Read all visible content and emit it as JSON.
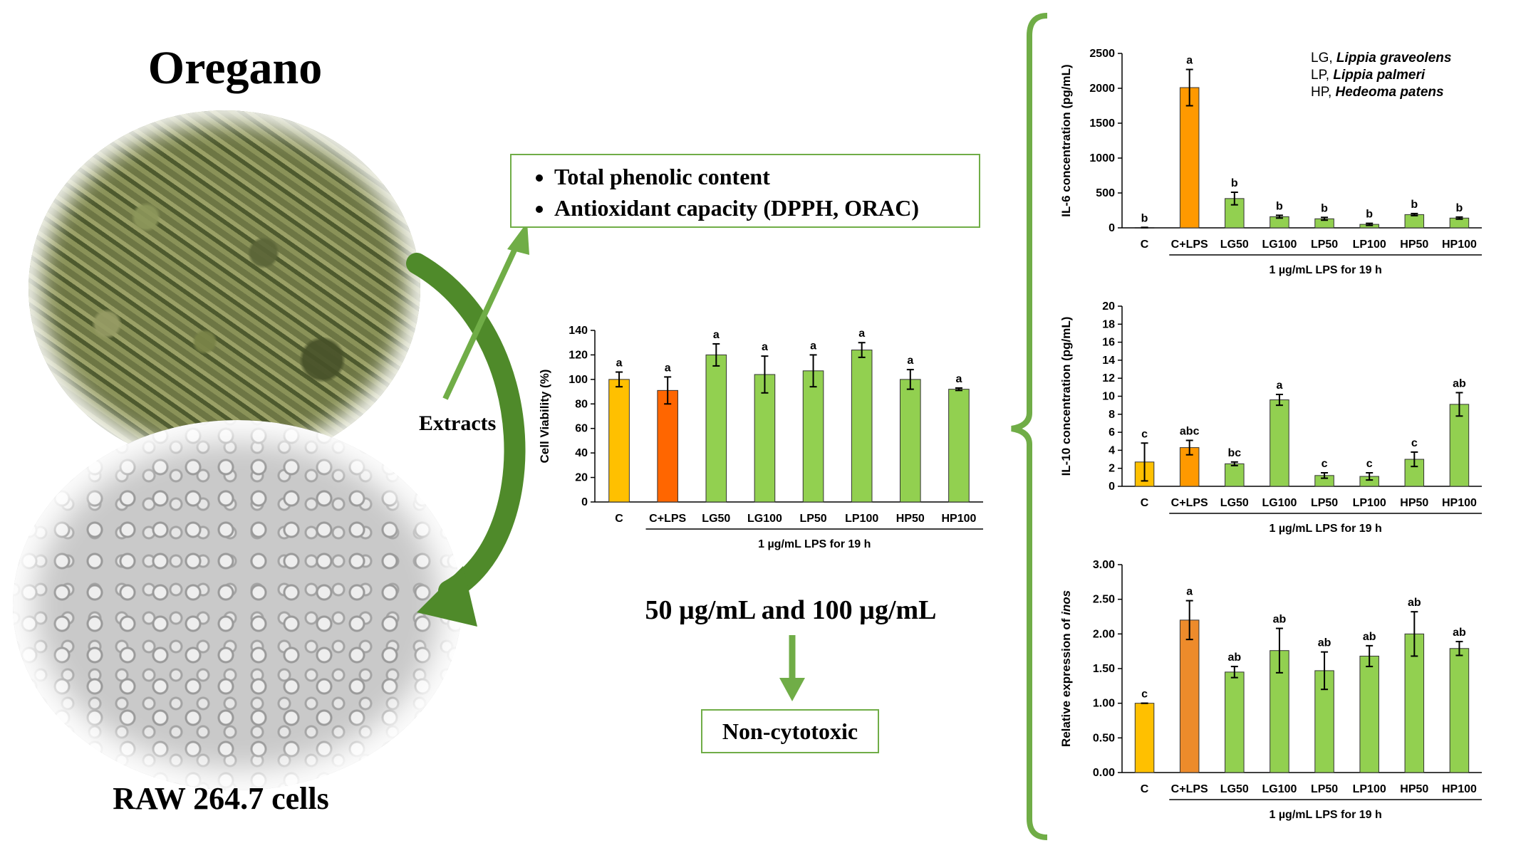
{
  "title": "Oregano",
  "cells_label": "RAW 264.7 cells",
  "extracts_label": "Extracts",
  "assays": [
    "Total phenolic content",
    "Antioxidant capacity (DPPH, ORAC)"
  ],
  "dose_label": "50 µg/mL and 100 µg/mL",
  "noncytotoxic_label": "Non-cytotoxic",
  "icons": {
    "herb": "oregano-herb-photo",
    "cells": "raw-cells-micrograph"
  },
  "colors": {
    "green": "#70ad47",
    "bar_green": "#92d050",
    "yellow": "#ffc000",
    "orange": "#ff6600",
    "orange2": "#ff9900",
    "orange3": "#ed8b2b",
    "arrow_green": "#4f8a2a"
  },
  "chart_data": [
    {
      "type": "bar",
      "categories": [
        "C",
        "C+LPS",
        "LG50",
        "LG100",
        "LP50",
        "LP100",
        "HP50",
        "HP100"
      ],
      "values": [
        100,
        91,
        120,
        104,
        107,
        124,
        100,
        92
      ],
      "errors": [
        6,
        11,
        9,
        15,
        13,
        6,
        8,
        1
      ],
      "letters": [
        "a",
        "a",
        "a",
        "a",
        "a",
        "a",
        "a",
        "a"
      ],
      "bar_colors": [
        "#ffc000",
        "#ff6600",
        "#92d050",
        "#92d050",
        "#92d050",
        "#92d050",
        "#92d050",
        "#92d050"
      ],
      "ylabel": "Cell Viability (%)",
      "xlabel": "1 µg/mL LPS for 19 h",
      "ylim": [
        0,
        140
      ],
      "yticks": [
        "0",
        "20",
        "40",
        "60",
        "80",
        "100",
        "120",
        "140"
      ]
    },
    {
      "type": "bar",
      "categories": [
        "C",
        "C+LPS",
        "LG50",
        "LG100",
        "LP50",
        "LP100",
        "HP50",
        "HP100"
      ],
      "values": [
        5,
        2010,
        420,
        160,
        130,
        50,
        190,
        140
      ],
      "errors": [
        2,
        260,
        90,
        20,
        20,
        15,
        15,
        15
      ],
      "letters": [
        "b",
        "a",
        "b",
        "b",
        "b",
        "b",
        "b",
        "b"
      ],
      "bar_colors": [
        "#ffc000",
        "#ff9900",
        "#92d050",
        "#92d050",
        "#92d050",
        "#92d050",
        "#92d050",
        "#92d050"
      ],
      "ylabel": "IL-6 concentration (pg/mL)",
      "xlabel": "1 µg/mL LPS for 19 h",
      "ylim": [
        0,
        2500
      ],
      "yticks": [
        "0",
        "500",
        "1000",
        "1500",
        "2000",
        "2500"
      ],
      "legend": [
        {
          "code": "LG, ",
          "species": "Lippia graveolens"
        },
        {
          "code": "LP, ",
          "species": "Lippia palmeri"
        },
        {
          "code": "HP, ",
          "species": "Hedeoma patens"
        }
      ]
    },
    {
      "type": "bar",
      "categories": [
        "C",
        "C+LPS",
        "LG50",
        "LG100",
        "LP50",
        "LP100",
        "HP50",
        "HP100"
      ],
      "values": [
        2.7,
        4.3,
        2.5,
        9.6,
        1.2,
        1.1,
        3.0,
        9.1
      ],
      "errors": [
        2.1,
        0.8,
        0.2,
        0.6,
        0.3,
        0.4,
        0.8,
        1.3
      ],
      "letters": [
        "c",
        "abc",
        "bc",
        "a",
        "c",
        "c",
        "c",
        "ab"
      ],
      "bar_colors": [
        "#ffc000",
        "#ff9900",
        "#92d050",
        "#92d050",
        "#92d050",
        "#92d050",
        "#92d050",
        "#92d050"
      ],
      "ylabel": "IL-10 concentration (pg/mL)",
      "xlabel": "1 µg/mL LPS for 19 h",
      "ylim": [
        0,
        20
      ],
      "yticks": [
        "0",
        "2",
        "4",
        "6",
        "8",
        "10",
        "12",
        "14",
        "16",
        "18",
        "20"
      ]
    },
    {
      "type": "bar",
      "categories": [
        "C",
        "C+LPS",
        "LG50",
        "LG100",
        "LP50",
        "LP100",
        "HP50",
        "HP100"
      ],
      "values": [
        1.0,
        2.2,
        1.45,
        1.76,
        1.47,
        1.68,
        2.0,
        1.79
      ],
      "errors": [
        0.0,
        0.28,
        0.08,
        0.32,
        0.27,
        0.15,
        0.32,
        0.1
      ],
      "letters": [
        "c",
        "a",
        "ab",
        "ab",
        "ab",
        "ab",
        "ab",
        "ab"
      ],
      "bar_colors": [
        "#ffc000",
        "#ed8b2b",
        "#92d050",
        "#92d050",
        "#92d050",
        "#92d050",
        "#92d050",
        "#92d050"
      ],
      "ylabel": "Relative expression of inos",
      "xlabel": "1 µg/mL LPS for 19 h",
      "ylim": [
        0,
        3
      ],
      "yticks": [
        "0.00",
        "0.50",
        "1.00",
        "1.50",
        "2.00",
        "2.50",
        "3.00"
      ]
    }
  ]
}
